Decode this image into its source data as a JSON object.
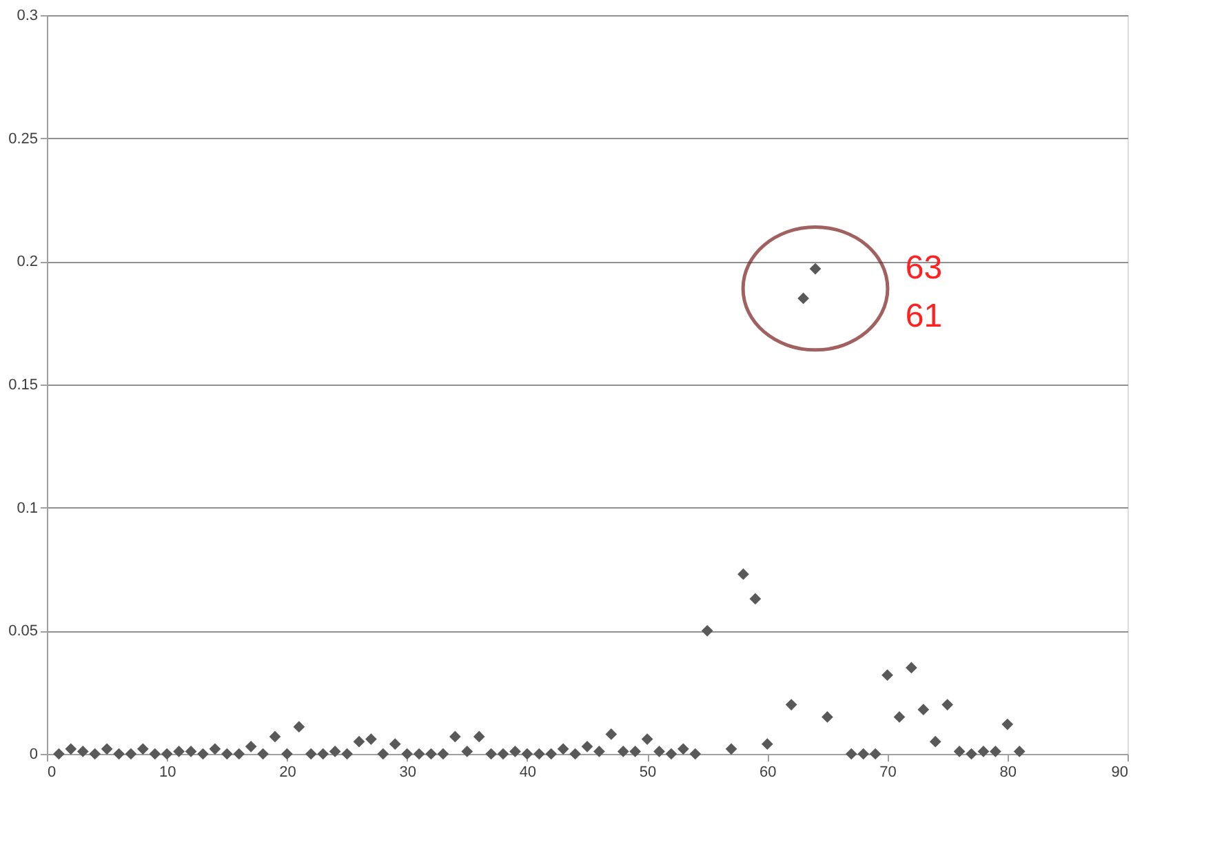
{
  "chart_data": {
    "type": "scatter",
    "marker": "diamond",
    "grid": "y",
    "x": [
      1,
      2,
      3,
      4,
      5,
      6,
      7,
      8,
      9,
      10,
      11,
      12,
      13,
      14,
      15,
      16,
      17,
      18,
      19,
      20,
      21,
      22,
      23,
      24,
      25,
      26,
      27,
      28,
      29,
      30,
      31,
      32,
      33,
      34,
      35,
      36,
      37,
      38,
      39,
      40,
      41,
      42,
      43,
      44,
      45,
      46,
      47,
      48,
      49,
      50,
      51,
      52,
      53,
      54,
      55,
      57,
      58,
      59,
      60,
      62,
      63,
      64,
      65,
      67,
      68,
      69,
      70,
      71,
      72,
      73,
      74,
      75,
      76,
      77,
      78,
      79,
      80,
      81
    ],
    "series": [
      {
        "color": "#595959",
        "values": [
          0,
          0.002,
          0.001,
          0,
          0.002,
          0,
          0,
          0.002,
          0,
          0,
          0.001,
          0.001,
          0,
          0.002,
          0,
          0,
          0.003,
          0,
          0.007,
          0,
          0.011,
          0,
          0,
          0.001,
          0,
          0.005,
          0.006,
          0,
          0.004,
          0,
          0,
          0,
          0,
          0.007,
          0.001,
          0.007,
          0,
          0,
          0.001,
          0,
          0,
          0,
          0.002,
          0,
          0.003,
          0.001,
          0.008,
          0.001,
          0.001,
          0.006,
          0.001,
          0,
          0.002,
          0,
          0.05,
          0.002,
          0.073,
          0.063,
          0.004,
          0.02,
          0.185,
          0.197,
          0.015,
          0,
          0,
          0,
          0.032,
          0.015,
          0.035,
          0.018,
          0.005,
          0.02,
          0.001,
          0,
          0.001,
          0.001,
          0.012,
          0.001
        ]
      }
    ],
    "xlim": [
      0,
      90
    ],
    "xticks": [
      0,
      10,
      20,
      30,
      40,
      50,
      60,
      70,
      80,
      90
    ],
    "ylim": [
      0,
      0.3
    ],
    "yticks": [
      0,
      0.05,
      0.1,
      0.15,
      0.2,
      0.25,
      0.3
    ],
    "annotations": [
      "63",
      "61"
    ]
  }
}
